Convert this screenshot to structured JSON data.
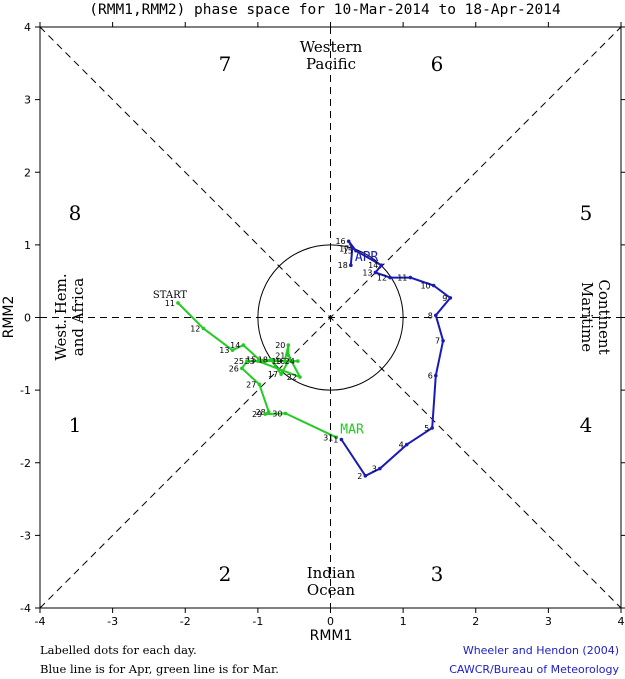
{
  "chart_data": {
    "type": "line",
    "title": "(RMM1,RMM2) phase space for 10-Mar-2014 to 18-Apr-2014",
    "xlabel": "RMM1",
    "ylabel": "RMM2",
    "xlim": [
      -4,
      4
    ],
    "ylim": [
      -4,
      4
    ],
    "ticks": [
      -4,
      -3,
      -2,
      -1,
      0,
      1,
      2,
      3,
      4
    ],
    "phase_labels": [
      "1",
      "2",
      "3",
      "4",
      "5",
      "6",
      "7",
      "8"
    ],
    "region_labels": {
      "top": [
        "Western",
        "Pacific"
      ],
      "bottom": [
        "Indian",
        "Ocean"
      ],
      "left": [
        "West. Hem.",
        "and Africa"
      ],
      "right": [
        "Maritime",
        "Continent"
      ]
    },
    "start_label": "START",
    "colors": {
      "mar": "#22cc22",
      "apr": "#1a1ab4",
      "grid": "#000000",
      "credit": "#2020c8"
    },
    "series": [
      {
        "name": "Mar",
        "month_label": "MAR",
        "points": [
          {
            "d": 11,
            "x": -2.1,
            "y": 0.2
          },
          {
            "d": 12,
            "x": -1.75,
            "y": -0.15
          },
          {
            "d": 13,
            "x": -1.35,
            "y": -0.45
          },
          {
            "d": 14,
            "x": -1.2,
            "y": -0.38
          },
          {
            "d": 15,
            "x": -0.98,
            "y": -0.58
          },
          {
            "d": 16,
            "x": -0.58,
            "y": -0.6
          },
          {
            "d": 17,
            "x": -0.68,
            "y": -0.78
          },
          {
            "d": 18,
            "x": -0.82,
            "y": -0.58
          },
          {
            "d": 19,
            "x": -0.63,
            "y": -0.6
          },
          {
            "d": 20,
            "x": -0.58,
            "y": -0.38
          },
          {
            "d": 21,
            "x": -0.58,
            "y": -0.52
          },
          {
            "d": 22,
            "x": -0.42,
            "y": -0.82
          },
          {
            "d": 23,
            "x": -1.0,
            "y": -0.6
          },
          {
            "d": 24,
            "x": -0.45,
            "y": -0.6
          },
          {
            "d": 25,
            "x": -1.15,
            "y": -0.6
          },
          {
            "d": 26,
            "x": -1.22,
            "y": -0.7
          },
          {
            "d": 27,
            "x": -0.98,
            "y": -0.92
          },
          {
            "d": 28,
            "x": -0.85,
            "y": -1.3
          },
          {
            "d": 29,
            "x": -0.9,
            "y": -1.33
          },
          {
            "d": 30,
            "x": -0.62,
            "y": -1.32
          },
          {
            "d": 31,
            "x": 0.08,
            "y": -1.65
          }
        ]
      },
      {
        "name": "Apr",
        "month_label": "APR",
        "points": [
          {
            "d": 1,
            "x": 0.15,
            "y": -1.68
          },
          {
            "d": 2,
            "x": 0.48,
            "y": -2.18
          },
          {
            "d": 3,
            "x": 0.68,
            "y": -2.08
          },
          {
            "d": 4,
            "x": 1.05,
            "y": -1.75
          },
          {
            "d": 5,
            "x": 1.4,
            "y": -1.52
          },
          {
            "d": 6,
            "x": 1.45,
            "y": -0.8
          },
          {
            "d": 7,
            "x": 1.55,
            "y": -0.32
          },
          {
            "d": 8,
            "x": 1.45,
            "y": 0.03
          },
          {
            "d": 9,
            "x": 1.65,
            "y": 0.27
          },
          {
            "d": 10,
            "x": 1.42,
            "y": 0.44
          },
          {
            "d": 11,
            "x": 1.1,
            "y": 0.55
          },
          {
            "d": 12,
            "x": 0.82,
            "y": 0.55
          },
          {
            "d": 13,
            "x": 0.62,
            "y": 0.62
          },
          {
            "d": 14,
            "x": 0.7,
            "y": 0.72
          },
          {
            "d": 15,
            "x": 0.35,
            "y": 0.92
          },
          {
            "d": 16,
            "x": 0.25,
            "y": 1.05
          },
          {
            "d": 17,
            "x": 0.3,
            "y": 0.95
          },
          {
            "d": 18,
            "x": 0.28,
            "y": 0.72
          }
        ]
      }
    ]
  },
  "footer": {
    "note_line1": "Labelled dots for each day.",
    "note_line2": "Blue line is for Apr, green line is for Mar.",
    "credit_line1": "Wheeler and Hendon (2004)",
    "credit_line2": "CAWCR/Bureau of Meteorology"
  }
}
